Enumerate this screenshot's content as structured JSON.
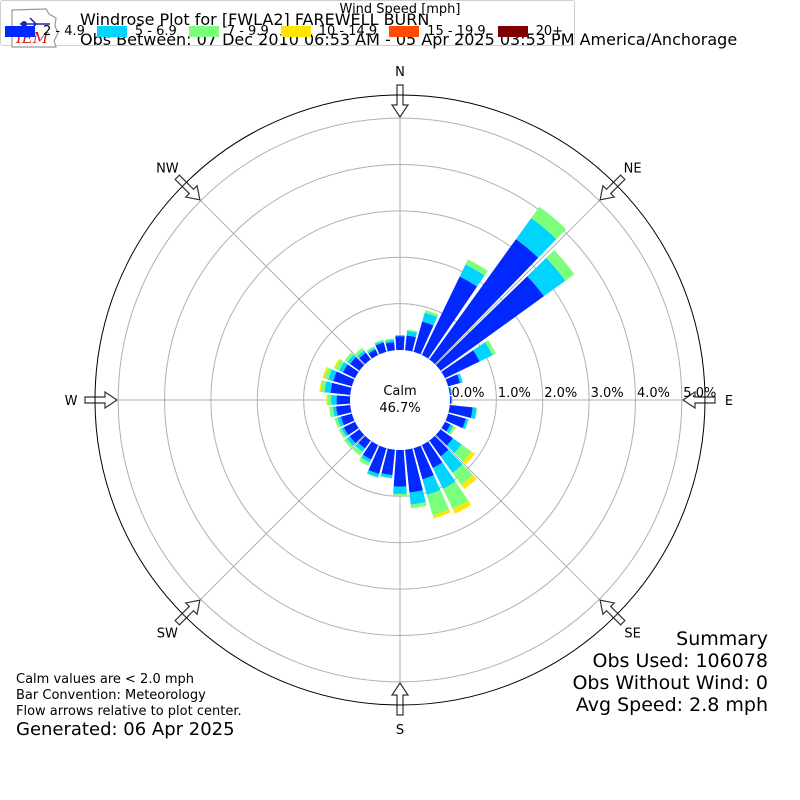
{
  "header": {
    "title": "Windrose Plot for [FWLA2] FAREWELL BURN",
    "subtitle": "Obs Between: 07 Dec 2010 06:53 AM - 05 Apr 2025 03:53 PM America/Anchorage",
    "logo_text": "IEM"
  },
  "notes": {
    "calm_note": "Calm values are < 2.0 mph",
    "bar_convention": "Bar Convention: Meteorology",
    "flow_note": "Flow arrows relative to plot center.",
    "generated": "Generated: 06 Apr 2025"
  },
  "summary": {
    "title": "Summary",
    "obs_used": "Obs Used: 106078",
    "obs_without_wind": "Obs Without Wind: 0",
    "avg_speed": "Avg Speed: 2.8 mph"
  },
  "chart_data": {
    "type": "windrose",
    "calm_label": "Calm",
    "calm_value": "46.7%",
    "compass_labels": [
      "N",
      "NE",
      "E",
      "SE",
      "S",
      "SW",
      "W",
      "NW"
    ],
    "radial_ticks": [
      "0.0%",
      "1.0%",
      "2.0%",
      "3.0%",
      "4.0%",
      "5.0%"
    ],
    "radial_tick_values": [
      0,
      1,
      2,
      3,
      4,
      5
    ],
    "rmax": 5.5,
    "legend_title": "Wind Speed [mph]",
    "bins": [
      "2 - 4.9",
      "5 - 6.9",
      "7 - 9.9",
      "10 - 14.9",
      "15 - 19.9",
      "20+"
    ],
    "colors": [
      "#0028ff",
      "#00d4ff",
      "#7cff7a",
      "#ffe600",
      "#ff4a00",
      "#7f0000"
    ],
    "directions_deg": [
      0,
      10,
      20,
      30,
      40,
      50,
      60,
      70,
      80,
      90,
      100,
      110,
      120,
      130,
      140,
      150,
      160,
      170,
      180,
      190,
      200,
      210,
      220,
      230,
      240,
      250,
      260,
      270,
      280,
      290,
      300,
      310,
      320,
      330,
      340,
      350
    ],
    "values": [
      [
        0.3,
        0.02,
        0,
        0,
        0,
        0
      ],
      [
        0.32,
        0.1,
        0.03,
        0,
        0,
        0
      ],
      [
        0.68,
        0.2,
        0.06,
        0,
        0,
        0
      ],
      [
        1.88,
        0.29,
        0.12,
        0,
        0,
        0
      ],
      [
        3.2,
        0.56,
        0.3,
        0,
        0,
        0
      ],
      [
        2.75,
        0.57,
        0.24,
        0,
        0,
        0
      ],
      [
        0.83,
        0.31,
        0.08,
        0,
        0,
        0
      ],
      [
        0.27,
        0.06,
        0,
        0,
        0,
        0
      ],
      [
        0.03,
        0.02,
        0,
        0,
        0,
        0
      ],
      [
        0.03,
        0.02,
        0,
        0,
        0,
        0
      ],
      [
        0.5,
        0.08,
        0.02,
        0,
        0,
        0
      ],
      [
        0.4,
        0.05,
        0.02,
        0,
        0,
        0
      ],
      [
        0.13,
        0.07,
        0.04,
        0.02,
        0,
        0
      ],
      [
        0.33,
        0.23,
        0.26,
        0.09,
        0,
        0
      ],
      [
        0.42,
        0.44,
        0.32,
        0.11,
        0,
        0
      ],
      [
        0.55,
        0.5,
        0.49,
        0.11,
        0,
        0
      ],
      [
        0.7,
        0.35,
        0.46,
        0.07,
        0,
        0
      ],
      [
        0.93,
        0.26,
        0.08,
        0,
        0,
        0
      ],
      [
        0.79,
        0.16,
        0.05,
        0,
        0,
        0
      ],
      [
        0.55,
        0.06,
        0.02,
        0,
        0,
        0
      ],
      [
        0.58,
        0.07,
        0.02,
        0,
        0,
        0
      ],
      [
        0.35,
        0.07,
        0.08,
        0,
        0,
        0
      ],
      [
        0.21,
        0.09,
        0.1,
        0,
        0,
        0
      ],
      [
        0.26,
        0.08,
        0.07,
        0,
        0,
        0
      ],
      [
        0.27,
        0.06,
        0.06,
        0,
        0,
        0
      ],
      [
        0.25,
        0.08,
        0.06,
        0,
        0,
        0
      ],
      [
        0.31,
        0.07,
        0.08,
        0,
        0,
        0
      ],
      [
        0.29,
        0.12,
        0.08,
        0.02,
        0,
        0
      ],
      [
        0.43,
        0.13,
        0.08,
        0.03,
        0,
        0
      ],
      [
        0.42,
        0.11,
        0.09,
        0.04,
        0,
        0
      ],
      [
        0.29,
        0.09,
        0.09,
        0.04,
        0,
        0
      ],
      [
        0.25,
        0.07,
        0.07,
        0,
        0,
        0
      ],
      [
        0.18,
        0.06,
        0.07,
        0,
        0,
        0
      ],
      [
        0.13,
        0.04,
        0.04,
        0,
        0,
        0
      ],
      [
        0.21,
        0.04,
        0.02,
        0,
        0,
        0
      ],
      [
        0.18,
        0.05,
        0.03,
        0,
        0,
        0
      ]
    ]
  }
}
